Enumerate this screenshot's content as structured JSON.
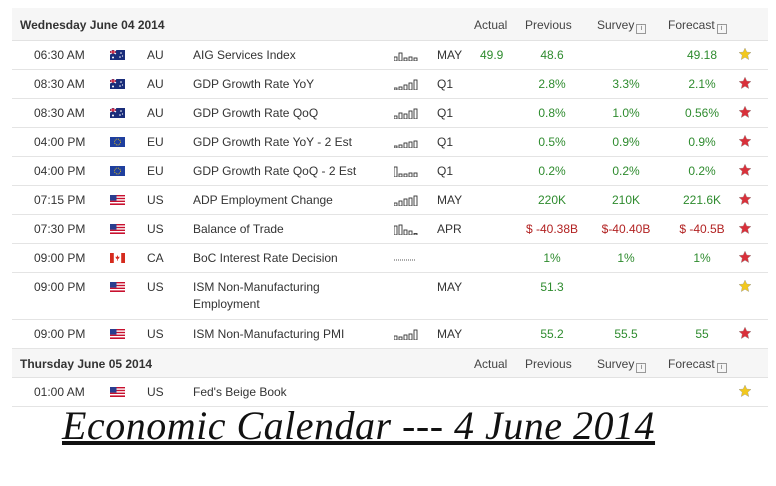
{
  "day1": {
    "title": "Wednesday June 04 2014",
    "columns": {
      "actual": "Actual",
      "previous": "Previous",
      "survey": "Survey",
      "forecast": "Forecast"
    }
  },
  "day2": {
    "title": "Thursday June 05 2014",
    "columns": {
      "actual": "Actual",
      "previous": "Previous",
      "survey": "Survey",
      "forecast": "Forecast"
    }
  },
  "info_icon_glyph": "i",
  "rows1": [
    {
      "time": "06:30 AM",
      "flag": "australia-flag-icon",
      "country": "AU",
      "event": "AIG Services Index",
      "period": "MAY",
      "actual": "49.9",
      "previous": "48.6",
      "survey": "",
      "forecast": "49.18",
      "star": "yellow"
    },
    {
      "time": "08:30 AM",
      "flag": "australia-flag-icon",
      "country": "AU",
      "event": "GDP Growth Rate YoY",
      "period": "Q1",
      "actual": "",
      "previous": "2.8%",
      "survey": "3.3%",
      "forecast": "2.1%",
      "star": "red"
    },
    {
      "time": "08:30 AM",
      "flag": "australia-flag-icon",
      "country": "AU",
      "event": "GDP Growth Rate QoQ",
      "period": "Q1",
      "actual": "",
      "previous": "0.8%",
      "survey": "1.0%",
      "forecast": "0.56%",
      "star": "red"
    },
    {
      "time": "04:00 PM",
      "flag": "eu-flag-icon",
      "country": "EU",
      "event": "GDP Growth Rate YoY - 2 Est",
      "period": "Q1",
      "actual": "",
      "previous": "0.5%",
      "survey": "0.9%",
      "forecast": "0.9%",
      "star": "red"
    },
    {
      "time": "04:00 PM",
      "flag": "eu-flag-icon",
      "country": "EU",
      "event": "GDP Growth Rate QoQ - 2 Est",
      "period": "Q1",
      "actual": "",
      "previous": "0.2%",
      "survey": "0.2%",
      "forecast": "0.2%",
      "star": "red"
    },
    {
      "time": "07:15 PM",
      "flag": "us-flag-icon",
      "country": "US",
      "event": "ADP Employment Change",
      "period": "MAY",
      "actual": "",
      "previous": "220K",
      "survey": "210K",
      "forecast": "221.6K",
      "star": "red"
    },
    {
      "time": "07:30 PM",
      "flag": "us-flag-icon",
      "country": "US",
      "event": "Balance of Trade",
      "period": "APR",
      "actual": "",
      "previous": "$ -40.38B",
      "survey": "$-40.40B",
      "forecast": "$ -40.5B",
      "star": "red"
    },
    {
      "time": "09:00 PM",
      "flag": "canada-flag-icon",
      "country": "CA",
      "event": "BoC Interest Rate Decision",
      "period": "",
      "actual": "",
      "previous": "1%",
      "survey": "1%",
      "forecast": "1%",
      "star": "red"
    },
    {
      "time": "09:00 PM",
      "flag": "us-flag-icon",
      "country": "US",
      "event": "ISM Non-Manufacturing Employment",
      "period": "MAY",
      "actual": "",
      "previous": "51.3",
      "survey": "",
      "forecast": "",
      "star": "yellow"
    },
    {
      "time": "09:00 PM",
      "flag": "us-flag-icon",
      "country": "US",
      "event": "ISM Non-Manufacturing PMI",
      "period": "MAY",
      "actual": "",
      "previous": "55.2",
      "survey": "55.5",
      "forecast": "55",
      "star": "red"
    }
  ],
  "rows2": [
    {
      "time": "01:00 AM",
      "flag": "us-flag-icon",
      "country": "US",
      "event": "Fed's Beige Book",
      "period": "",
      "actual": "",
      "previous": "",
      "survey": "",
      "forecast": "",
      "star": "yellow"
    }
  ],
  "caption": "Economic Calendar --- 4 June 2014",
  "colors": {
    "positive": "#2e8b2e",
    "negative": "#b22222",
    "star_red": "#d9303a",
    "star_yellow": "#f2c81d"
  }
}
